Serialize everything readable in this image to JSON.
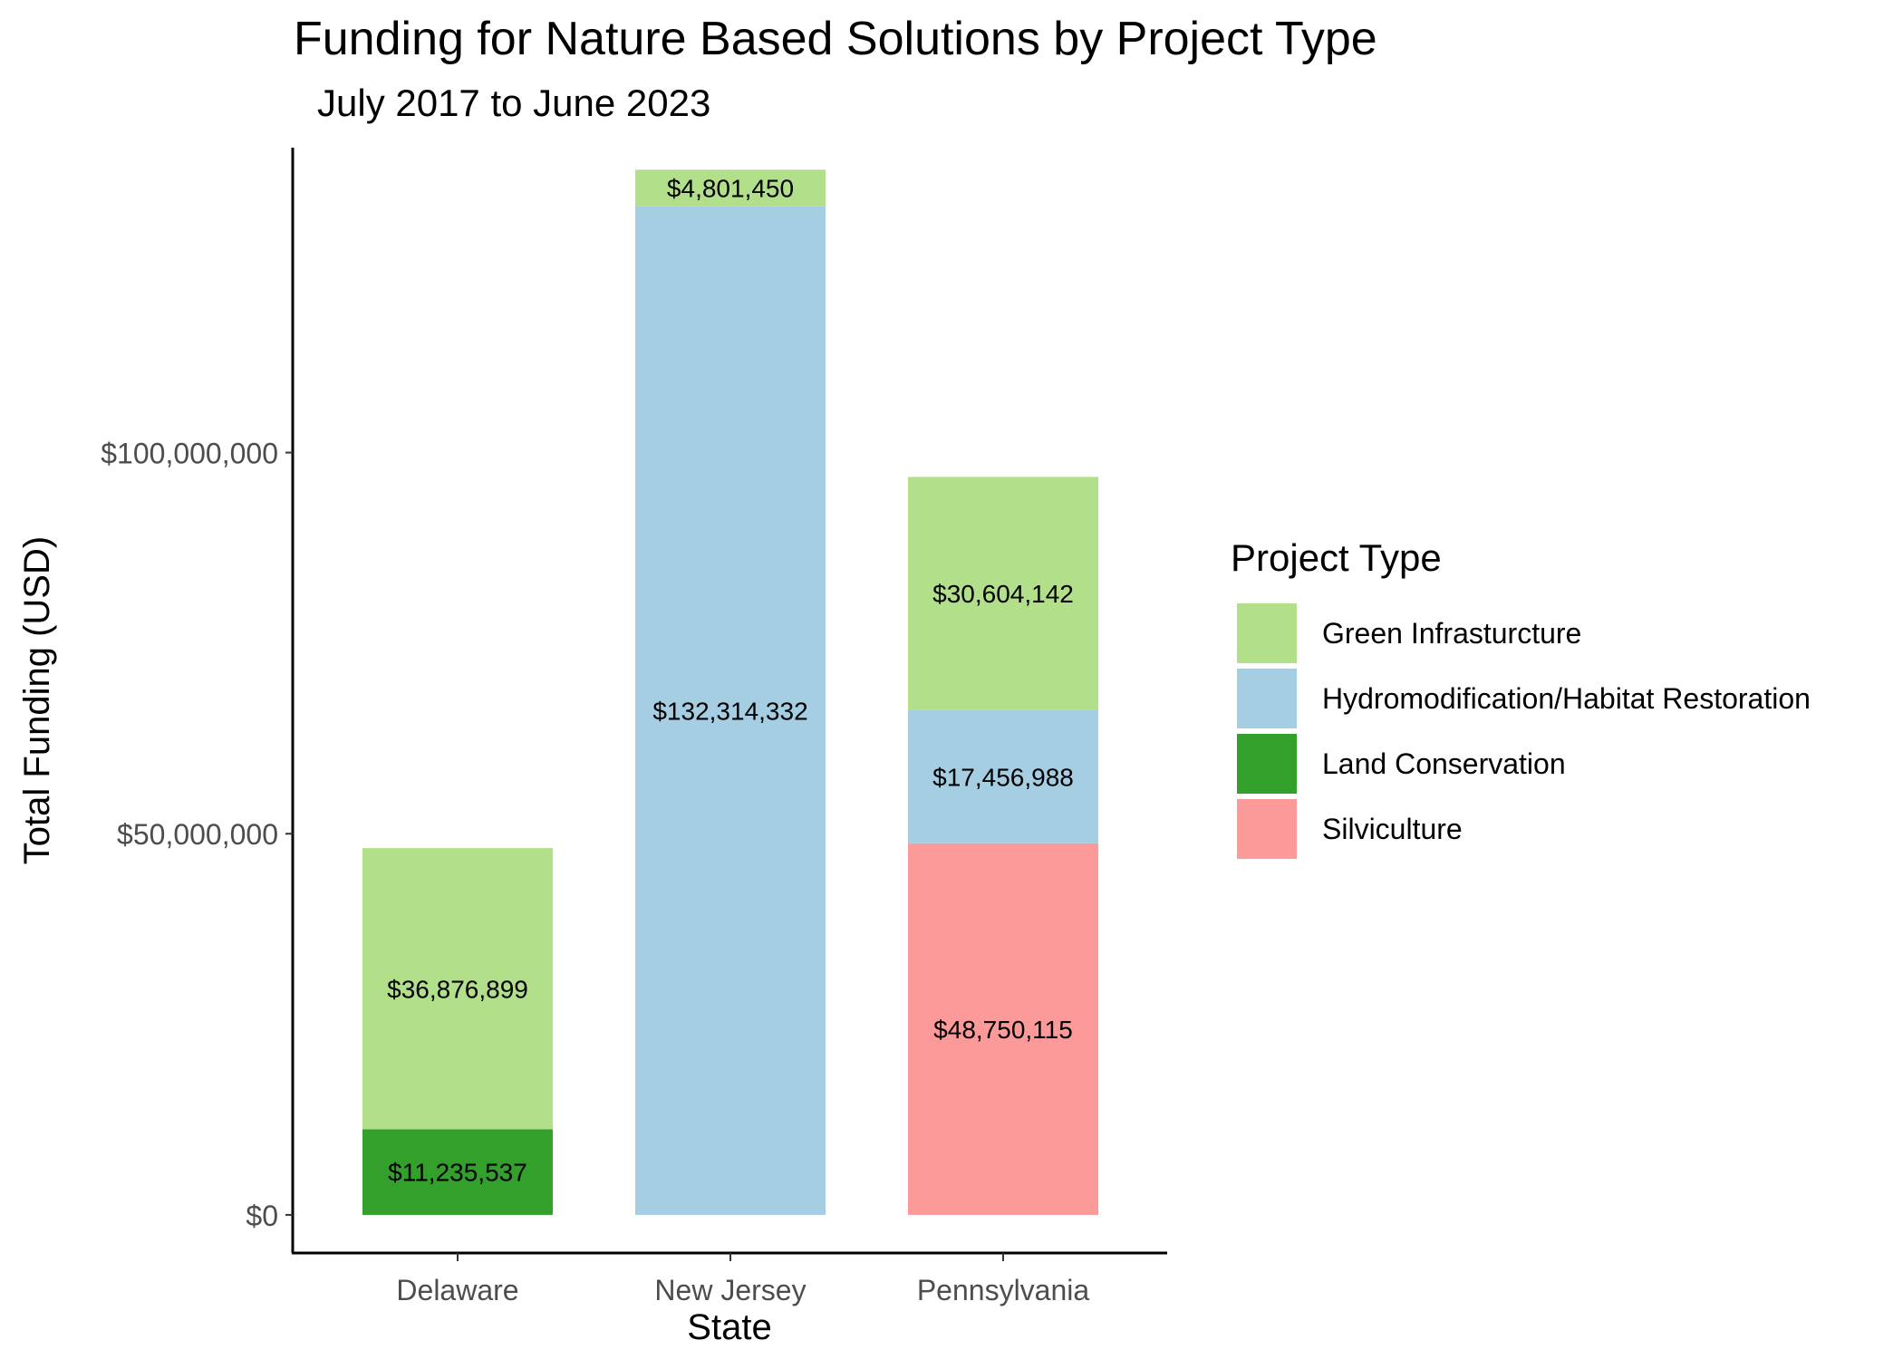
{
  "chart_data": {
    "type": "bar",
    "stacked": true,
    "title": "Funding for Nature Based Solutions by Project Type",
    "subtitle": "July 2017 to June 2023",
    "xlabel": "State",
    "ylabel": "Total Funding (USD)",
    "categories": [
      "Delaware",
      "New Jersey",
      "Pennsylvania"
    ],
    "ylim": [
      -5000000,
      140000000
    ],
    "yticks": [
      0,
      50000000,
      100000000
    ],
    "ytick_labels": [
      "$0",
      "$50,000,000",
      "$100,000,000"
    ],
    "grid": false,
    "legend": {
      "title": "Project Type",
      "position": "right"
    },
    "stack_order": [
      "Silviculture",
      "Land Conservation",
      "Hydromodification/Habitat Restoration",
      "Green Infrasturcture"
    ],
    "series": [
      {
        "name": "Green Infrasturcture",
        "color": "#b2df8a",
        "values": [
          36876899,
          4801450,
          30604142
        ],
        "labels": [
          "$36,876,899",
          "$4,801,450",
          "$30,604,142"
        ]
      },
      {
        "name": "Hydromodification/Habitat Restoration",
        "color": "#a6cee3",
        "values": [
          0,
          132314332,
          17456988
        ],
        "labels": [
          "",
          "$132,314,332",
          "$17,456,988"
        ]
      },
      {
        "name": "Land Conservation",
        "color": "#33a02c",
        "values": [
          11235537,
          0,
          0
        ],
        "labels": [
          "$11,235,537",
          "",
          ""
        ]
      },
      {
        "name": "Silviculture",
        "color": "#fb9a99",
        "values": [
          0,
          0,
          48750115
        ],
        "labels": [
          "",
          "",
          "$48,750,115"
        ]
      }
    ]
  }
}
